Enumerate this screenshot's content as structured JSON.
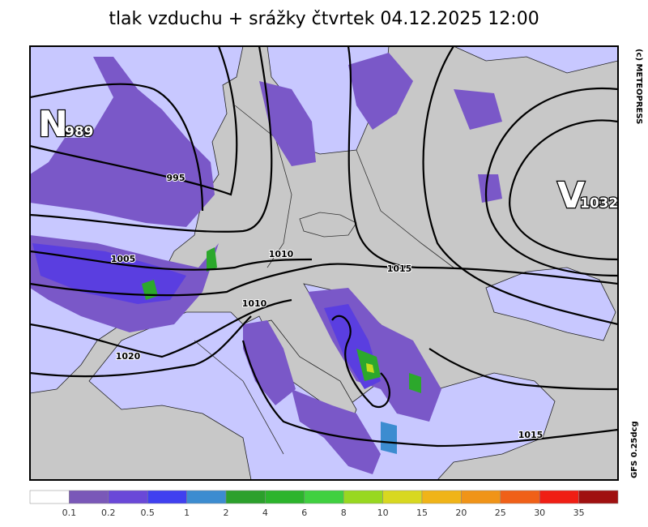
{
  "title": "tlak vzduchu + srážky čtvrtek 04.12.2025 12:00",
  "copyright": "(c) METEOPRESS",
  "model": "GFS 0.25dcg",
  "pressure_centers": [
    {
      "letter": "N",
      "value": "989"
    },
    {
      "letter": "V",
      "value": "1032"
    }
  ],
  "isobar_labels": [
    "995",
    "1005",
    "1010",
    "1010",
    "1015",
    "1020",
    "1015"
  ],
  "legend": {
    "colors": [
      "#ffffff",
      "#7a58b8",
      "#6a48d8",
      "#4040f0",
      "#3c8cd0",
      "#2ca02c",
      "#2cb42c",
      "#40d040",
      "#98d820",
      "#d8d820",
      "#f0b418",
      "#f09418",
      "#f06018",
      "#f01e14",
      "#a01010"
    ],
    "labels": [
      0.1,
      0.2,
      0.5,
      1,
      2,
      4,
      6,
      8,
      10,
      15,
      20,
      25,
      30,
      35
    ]
  }
}
